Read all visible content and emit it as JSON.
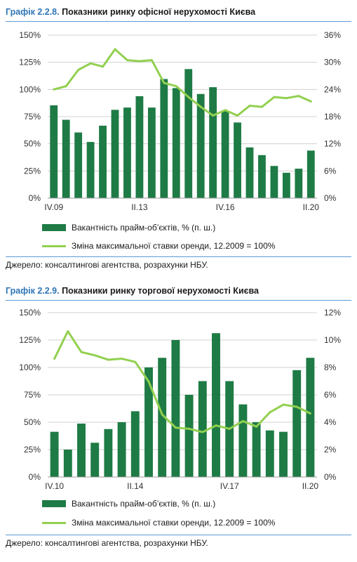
{
  "colors": {
    "bar": "#1e7b45",
    "line": "#92d050",
    "accent": "#2e75b6",
    "rule": "#5b9bd5"
  },
  "charts": [
    {
      "title_label": "Графік 2.2.8.",
      "title_text": "Показники ринку офісної нерухомості Києва",
      "legend_bar": "Вакантність прайм-об’єктів, % (п. ш.)",
      "legend_line": "Зміна максимальної ставки оренди, 12.2009 = 100%",
      "source": "Джерело: консалтингові агентства, розрахунки НБУ."
    },
    {
      "title_label": "Графік 2.2.9.",
      "title_text": "Показники ринку торгової нерухомості Києва",
      "legend_bar": "Вакантність прайм-об’єктів, % (п. ш.)",
      "legend_line": "Зміна максимальної ставки оренди, 12.2009 = 100%",
      "source": "Джерело: консалтингові агентства, розрахунки НБУ."
    }
  ],
  "chart_data": [
    {
      "type": "bar",
      "x_ticks": [
        "IV.09",
        "II.13",
        "IV.16",
        "II.20"
      ],
      "left_axis": {
        "ticks": [
          "0%",
          "25%",
          "50%",
          "75%",
          "100%",
          "125%",
          "150%"
        ],
        "ylim": [
          0,
          150
        ]
      },
      "right_axis": {
        "ticks": [
          "0%",
          "6%",
          "12%",
          "18%",
          "24%",
          "30%",
          "36%"
        ],
        "ylim": [
          0,
          36
        ]
      },
      "series": [
        {
          "kind": "bar",
          "axis": "right",
          "values": [
            20.5,
            17.3,
            14.5,
            12.4,
            16.0,
            19.5,
            20.0,
            22.5,
            20.0,
            26.3,
            24.3,
            28.5,
            23.0,
            24.5,
            19.2,
            16.7,
            11.2,
            9.5,
            7.1,
            5.6,
            6.5,
            10.5
          ]
        },
        {
          "kind": "line",
          "axis": "left",
          "values": [
            100,
            103,
            118,
            124,
            121,
            137,
            127,
            126,
            127,
            106,
            103,
            93,
            84,
            76,
            81,
            76,
            85,
            84,
            93,
            92,
            94,
            89
          ]
        }
      ]
    },
    {
      "type": "bar",
      "x_ticks": [
        "IV.10",
        "II.14",
        "IV.17",
        "II.20"
      ],
      "left_axis": {
        "ticks": [
          "0%",
          "25%",
          "50%",
          "75%",
          "100%",
          "125%",
          "150%"
        ],
        "ylim": [
          0,
          150
        ]
      },
      "right_axis": {
        "ticks": [
          "0%",
          "2%",
          "4%",
          "6%",
          "8%",
          "10%",
          "12%"
        ],
        "ylim": [
          0,
          12
        ]
      },
      "series": [
        {
          "kind": "bar",
          "axis": "right",
          "values": [
            3.3,
            2.0,
            3.9,
            2.5,
            3.5,
            4.0,
            4.8,
            8.0,
            8.7,
            10.0,
            6.0,
            7.0,
            10.5,
            7.0,
            5.3,
            4.0,
            3.4,
            3.3,
            7.8,
            8.7
          ]
        },
        {
          "kind": "line",
          "axis": "left",
          "values": [
            108,
            133,
            114,
            111,
            107,
            108,
            105,
            87,
            57,
            45,
            44,
            41,
            47,
            44,
            51,
            46,
            59,
            66,
            64,
            58
          ]
        }
      ]
    }
  ]
}
